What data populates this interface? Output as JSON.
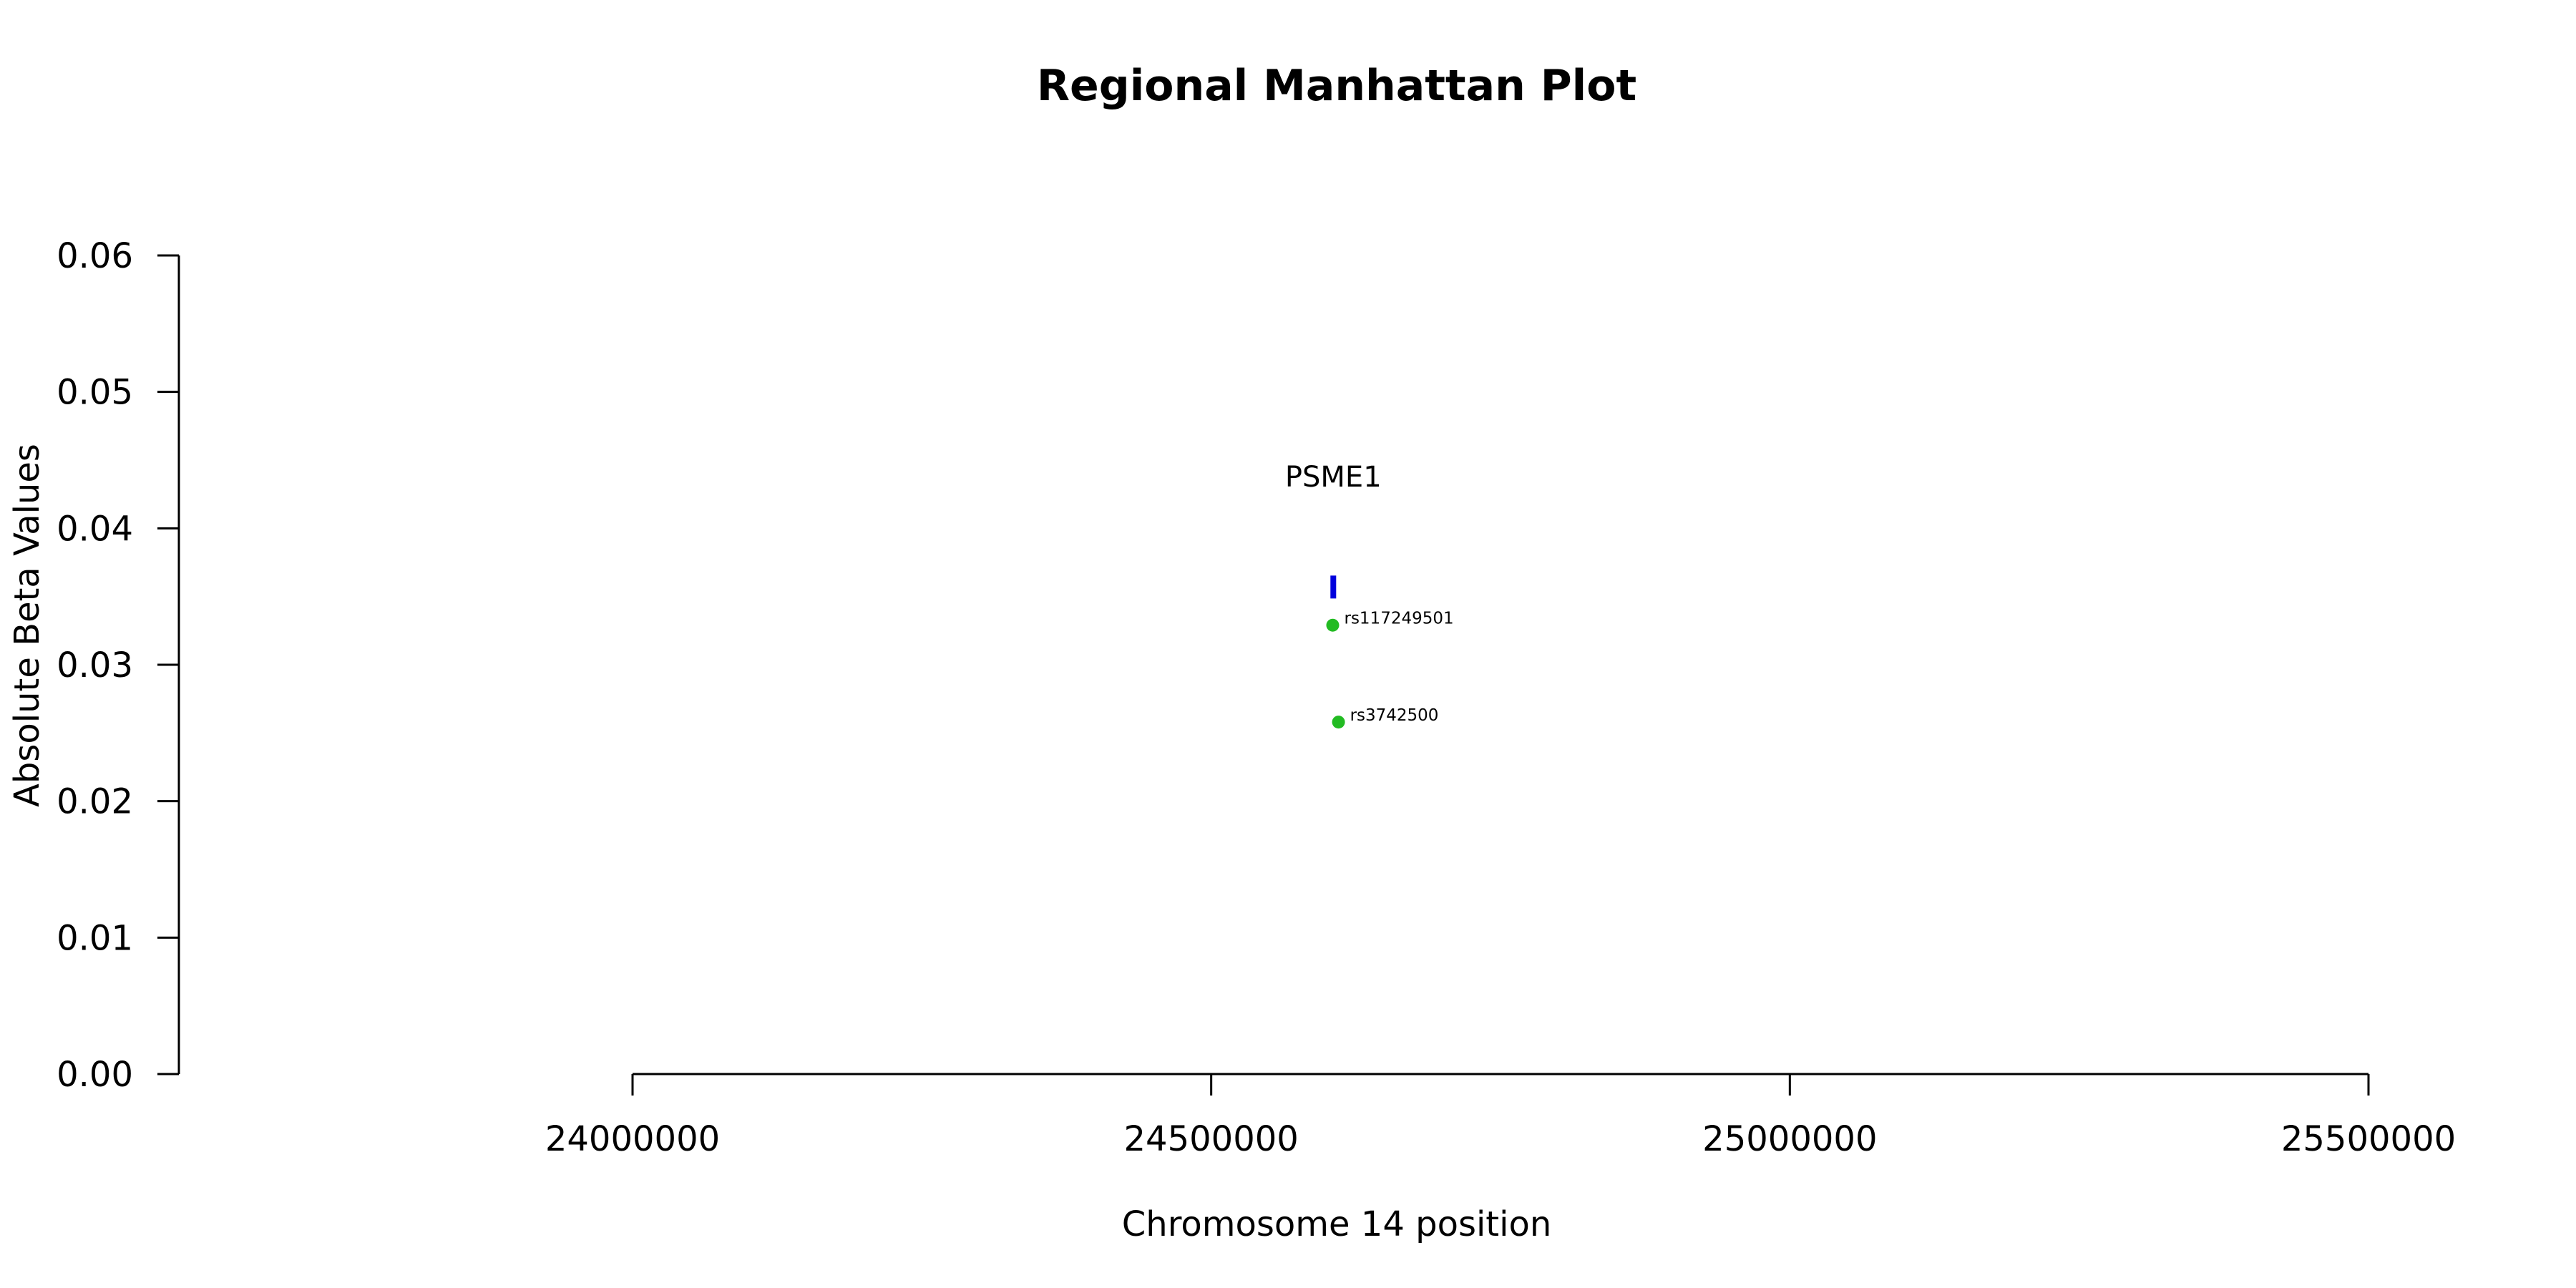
{
  "chart_data": {
    "type": "scatter",
    "title": "Regional Manhattan Plot",
    "xlabel": "Chromosome 14 position",
    "ylabel": "Absolute Beta Values",
    "xlim": [
      23600000,
      25600000
    ],
    "ylim": [
      0,
      0.06
    ],
    "x_ticks": [
      24000000,
      24500000,
      25000000,
      25500000
    ],
    "x_tick_labels": [
      "24000000",
      "24500000",
      "25000000",
      "25500000"
    ],
    "y_ticks": [
      0,
      0.01,
      0.02,
      0.03,
      0.04,
      0.05,
      0.06
    ],
    "y_tick_labels": [
      "0.00",
      "0.01",
      "0.02",
      "0.03",
      "0.04",
      "0.05",
      "0.06"
    ],
    "grid": false,
    "point_color": "#22bb22",
    "gene_color": "#0000dd",
    "points": [
      {
        "x": 24605000,
        "y": 0.0329,
        "label": "rs117249501"
      },
      {
        "x": 24610000,
        "y": 0.0258,
        "label": "rs3742500"
      }
    ],
    "genes": [
      {
        "name": "PSME1",
        "start": 24604000,
        "end": 24607000,
        "y": 0.0357,
        "label_y": 0.0438
      }
    ]
  }
}
